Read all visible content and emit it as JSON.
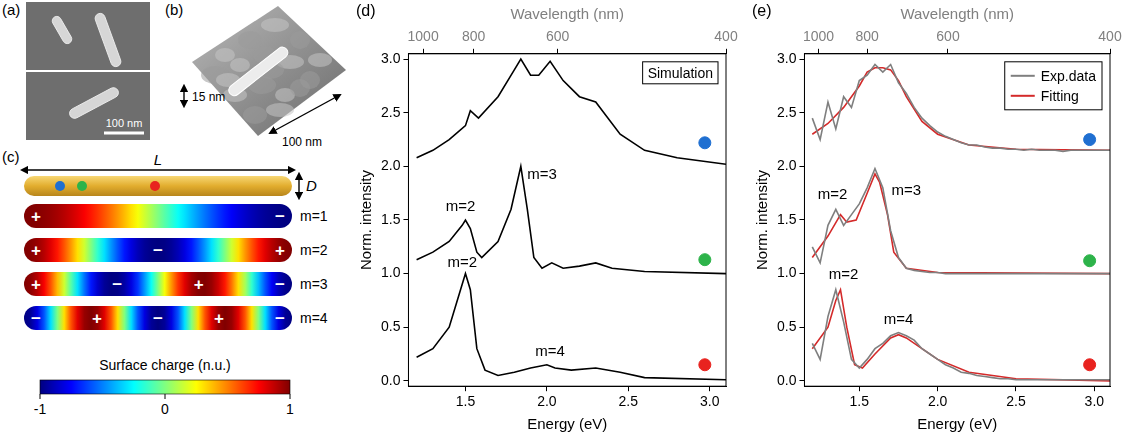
{
  "panels": {
    "a": {
      "label": "(a)",
      "scale_bar": "100 nm"
    },
    "b": {
      "label": "(b)",
      "height_label": "15 nm",
      "length_label": "100 nm"
    },
    "c": {
      "label": "(c)",
      "length_label": "L",
      "diameter_label": "D",
      "position_colors": [
        "#1f6fd1",
        "#2db34a",
        "#e8231f"
      ],
      "modes": [
        {
          "label": "m=1",
          "signs": [
            "+",
            "−"
          ]
        },
        {
          "label": "m=2",
          "signs": [
            "+",
            "−",
            "+"
          ]
        },
        {
          "label": "m=3",
          "signs": [
            "+",
            "−",
            "+",
            "−"
          ]
        },
        {
          "label": "m=4",
          "signs": [
            "−",
            "+",
            "−",
            "+",
            "−"
          ]
        }
      ],
      "colorbar": {
        "title": "Surface charge (n.u.)",
        "range": [
          -1,
          1
        ],
        "ticks": [
          -1,
          0,
          1
        ]
      }
    }
  },
  "chart_data": [
    {
      "panel": "(d)",
      "type": "line",
      "box_label": "Simulation",
      "x_label": "Energy (eV)",
      "x2_label": "Wavelength (nm)",
      "y_label": "Norm. intensity",
      "xlim": [
        1.15,
        3.1
      ],
      "xticks": [
        {
          "value": 1.5,
          "label": "1.5"
        },
        {
          "value": 2.0,
          "label": "2.0"
        },
        {
          "value": 2.5,
          "label": "2.5"
        },
        {
          "value": 3.0,
          "label": "3.0"
        }
      ],
      "x2ticks": [
        {
          "value": 1.24,
          "label": "1000"
        },
        {
          "value": 1.55,
          "label": "800"
        },
        {
          "value": 2.066,
          "label": "600"
        },
        {
          "value": 3.1,
          "label": "400"
        }
      ],
      "ylim": [
        -0.05,
        3.05
      ],
      "yticks": [
        {
          "value": 0,
          "label": "0.0"
        },
        {
          "value": 0.5,
          "label": "0.5"
        },
        {
          "value": 1.0,
          "label": "1.0"
        },
        {
          "value": 1.5,
          "label": "1.5"
        },
        {
          "value": 2.0,
          "label": "2.0"
        },
        {
          "value": 2.5,
          "label": "2.5"
        },
        {
          "value": 3.0,
          "label": "3.0"
        }
      ],
      "grid": false,
      "series": [
        {
          "color": "#000000",
          "x": [
            1.2,
            1.3,
            1.4,
            1.5,
            1.53,
            1.58,
            1.7,
            1.8,
            1.84,
            1.9,
            1.95,
            2.02,
            2.1,
            2.2,
            2.3,
            2.35,
            2.45,
            2.6,
            2.8,
            3.1
          ],
          "values": [
            2.08,
            2.15,
            2.25,
            2.38,
            2.52,
            2.45,
            2.65,
            2.9,
            3.0,
            2.85,
            2.85,
            2.98,
            2.8,
            2.65,
            2.6,
            2.5,
            2.3,
            2.15,
            2.08,
            2.02
          ]
        },
        {
          "color": "#000000",
          "x": [
            1.2,
            1.3,
            1.4,
            1.48,
            1.5,
            1.53,
            1.57,
            1.6,
            1.7,
            1.78,
            1.84,
            1.88,
            1.92,
            1.97,
            2.03,
            2.1,
            2.2,
            2.3,
            2.4,
            2.6,
            3.1
          ],
          "values": [
            1.13,
            1.2,
            1.3,
            1.45,
            1.5,
            1.42,
            1.2,
            1.15,
            1.3,
            1.6,
            2.0,
            1.6,
            1.15,
            1.05,
            1.1,
            1.05,
            1.07,
            1.1,
            1.05,
            1.02,
            1.0
          ]
        },
        {
          "color": "#000000",
          "x": [
            1.2,
            1.3,
            1.4,
            1.46,
            1.5,
            1.53,
            1.57,
            1.62,
            1.7,
            1.8,
            1.9,
            2.0,
            2.05,
            2.15,
            2.3,
            2.45,
            2.6,
            3.1
          ],
          "values": [
            0.22,
            0.3,
            0.5,
            0.8,
            1.0,
            0.85,
            0.3,
            0.1,
            0.05,
            0.08,
            0.12,
            0.15,
            0.12,
            0.1,
            0.12,
            0.08,
            0.03,
            0.01
          ]
        }
      ],
      "markers": [
        {
          "color": "#1f6fd1",
          "x": 2.97,
          "y": 2.22
        },
        {
          "color": "#2db34a",
          "x": 2.97,
          "y": 1.13
        },
        {
          "color": "#e8231f",
          "x": 2.97,
          "y": 0.15
        }
      ],
      "annotations": [
        {
          "text": "m=2",
          "x": 1.47,
          "y": 1.55
        },
        {
          "text": "m=3",
          "x": 1.97,
          "y": 1.85
        },
        {
          "text": "m=2",
          "x": 1.48,
          "y": 1.03
        },
        {
          "text": "m=4",
          "x": 2.02,
          "y": 0.2
        }
      ]
    },
    {
      "panel": "(e)",
      "type": "line",
      "legend": "top-right",
      "x_label": "Energy (eV)",
      "x2_label": "Wavelength (nm)",
      "y_label": "Norm. intensity",
      "xlim": [
        1.15,
        3.1
      ],
      "xticks": [
        {
          "value": 1.5,
          "label": "1.5"
        },
        {
          "value": 2.0,
          "label": "2.0"
        },
        {
          "value": 2.5,
          "label": "2.5"
        },
        {
          "value": 3.0,
          "label": "3.0"
        }
      ],
      "x2ticks": [
        {
          "value": 1.24,
          "label": "1000"
        },
        {
          "value": 1.55,
          "label": "800"
        },
        {
          "value": 2.066,
          "label": "600"
        },
        {
          "value": 3.1,
          "label": "400"
        }
      ],
      "ylim": [
        -0.05,
        3.05
      ],
      "yticks": [
        {
          "value": 0,
          "label": "0.0"
        },
        {
          "value": 0.5,
          "label": "0.5"
        },
        {
          "value": 1.0,
          "label": "1.0"
        },
        {
          "value": 1.5,
          "label": "1.5"
        },
        {
          "value": 2.0,
          "label": "2.0"
        },
        {
          "value": 2.5,
          "label": "2.5"
        },
        {
          "value": 3.0,
          "label": "3.0"
        }
      ],
      "grid": false,
      "series": [
        {
          "name": "Exp.data",
          "color": "#7f7f7f",
          "x": [
            1.2,
            1.25,
            1.3,
            1.35,
            1.4,
            1.45,
            1.5,
            1.55,
            1.6,
            1.65,
            1.7,
            1.75,
            1.8,
            1.85,
            1.9,
            1.95,
            2.0,
            2.05,
            2.1,
            2.15,
            2.2,
            2.25,
            2.3,
            2.35,
            2.4,
            2.45,
            2.5,
            2.55,
            2.6,
            2.65,
            2.7,
            2.75,
            2.8,
            2.85,
            2.9,
            2.95,
            3.0,
            3.05,
            3.1
          ],
          "values": [
            2.45,
            2.25,
            2.6,
            2.35,
            2.65,
            2.55,
            2.8,
            2.85,
            2.95,
            2.88,
            2.95,
            2.78,
            2.68,
            2.55,
            2.45,
            2.38,
            2.32,
            2.28,
            2.25,
            2.22,
            2.2,
            2.2,
            2.18,
            2.17,
            2.17,
            2.16,
            2.16,
            2.15,
            2.16,
            2.15,
            2.15,
            2.15,
            2.14,
            2.15,
            2.15,
            2.15,
            2.15,
            2.15,
            2.15
          ]
        },
        {
          "name": "Fitting",
          "color": "#d42a2a",
          "x": [
            1.2,
            1.3,
            1.4,
            1.5,
            1.55,
            1.6,
            1.65,
            1.7,
            1.75,
            1.8,
            1.9,
            2.0,
            2.2,
            2.5,
            3.1
          ],
          "values": [
            2.3,
            2.4,
            2.55,
            2.75,
            2.88,
            2.92,
            2.92,
            2.9,
            2.8,
            2.65,
            2.42,
            2.3,
            2.2,
            2.16,
            2.15
          ]
        },
        {
          "name": "Exp.data",
          "color": "#7f7f7f",
          "x": [
            1.2,
            1.25,
            1.3,
            1.35,
            1.4,
            1.45,
            1.5,
            1.55,
            1.6,
            1.65,
            1.7,
            1.75,
            1.8,
            1.85,
            1.9,
            1.95,
            2.0,
            2.05,
            2.1,
            2.15,
            2.2,
            2.25,
            2.3,
            2.35,
            2.4,
            2.45,
            2.5,
            2.55,
            2.6,
            2.65,
            2.7,
            2.75,
            2.8,
            2.85,
            2.9,
            2.95,
            3.0,
            3.05,
            3.1
          ],
          "values": [
            1.25,
            1.1,
            1.45,
            1.6,
            1.45,
            1.55,
            1.65,
            1.8,
            1.98,
            1.8,
            1.4,
            1.15,
            1.05,
            1.03,
            1.02,
            1.01,
            1.01,
            1.0,
            1.0,
            1.0,
            1.0,
            1.0,
            1.0,
            1.0,
            1.0,
            1.0,
            1.0,
            1.0,
            1.0,
            1.0,
            1.0,
            1.0,
            1.0,
            1.0,
            1.0,
            1.0,
            1.0,
            1.0,
            1.0
          ]
        },
        {
          "name": "Fitting",
          "color": "#d42a2a",
          "x": [
            1.2,
            1.3,
            1.38,
            1.42,
            1.48,
            1.55,
            1.6,
            1.63,
            1.68,
            1.72,
            1.8,
            2.0,
            3.1
          ],
          "values": [
            1.15,
            1.35,
            1.55,
            1.48,
            1.5,
            1.75,
            1.93,
            1.85,
            1.55,
            1.2,
            1.05,
            1.01,
            1.0
          ]
        },
        {
          "name": "Exp.data",
          "color": "#7f7f7f",
          "x": [
            1.2,
            1.25,
            1.3,
            1.35,
            1.4,
            1.45,
            1.5,
            1.55,
            1.6,
            1.65,
            1.7,
            1.75,
            1.8,
            1.85,
            1.9,
            1.95,
            2.0,
            2.05,
            2.1,
            2.15,
            2.2,
            2.25,
            2.3,
            2.35,
            2.4,
            2.45,
            2.5,
            2.55,
            2.6,
            2.65,
            2.7,
            2.75,
            2.8,
            2.85,
            2.9,
            2.95,
            3.0,
            3.05,
            3.1
          ],
          "values": [
            0.35,
            0.2,
            0.6,
            0.85,
            0.55,
            0.2,
            0.12,
            0.2,
            0.3,
            0.35,
            0.42,
            0.45,
            0.42,
            0.38,
            0.3,
            0.25,
            0.2,
            0.15,
            0.12,
            0.08,
            0.07,
            0.05,
            0.04,
            0.03,
            0.02,
            0.02,
            0.01,
            0.01,
            0.01,
            0.01,
            0.01,
            0.01,
            0.01,
            0.01,
            0.01,
            0.01,
            0.01,
            0.01,
            0.01
          ]
        },
        {
          "name": "Fitting",
          "color": "#d42a2a",
          "x": [
            1.2,
            1.3,
            1.35,
            1.38,
            1.42,
            1.47,
            1.52,
            1.6,
            1.7,
            1.75,
            1.8,
            1.9,
            2.0,
            2.2,
            2.5,
            3.1
          ],
          "values": [
            0.3,
            0.5,
            0.75,
            0.85,
            0.5,
            0.15,
            0.12,
            0.25,
            0.4,
            0.43,
            0.4,
            0.3,
            0.2,
            0.08,
            0.02,
            0.0
          ]
        }
      ],
      "markers": [
        {
          "color": "#1f6fd1",
          "x": 2.97,
          "y": 2.25
        },
        {
          "color": "#2db34a",
          "x": 2.97,
          "y": 1.12
        },
        {
          "color": "#e8231f",
          "x": 2.97,
          "y": 0.15
        }
      ],
      "annotations": [
        {
          "text": "m=2",
          "x": 1.33,
          "y": 1.66
        },
        {
          "text": "m=3",
          "x": 1.8,
          "y": 1.7
        },
        {
          "text": "m=2",
          "x": 1.4,
          "y": 0.92
        },
        {
          "text": "m=4",
          "x": 1.75,
          "y": 0.5
        }
      ]
    }
  ]
}
